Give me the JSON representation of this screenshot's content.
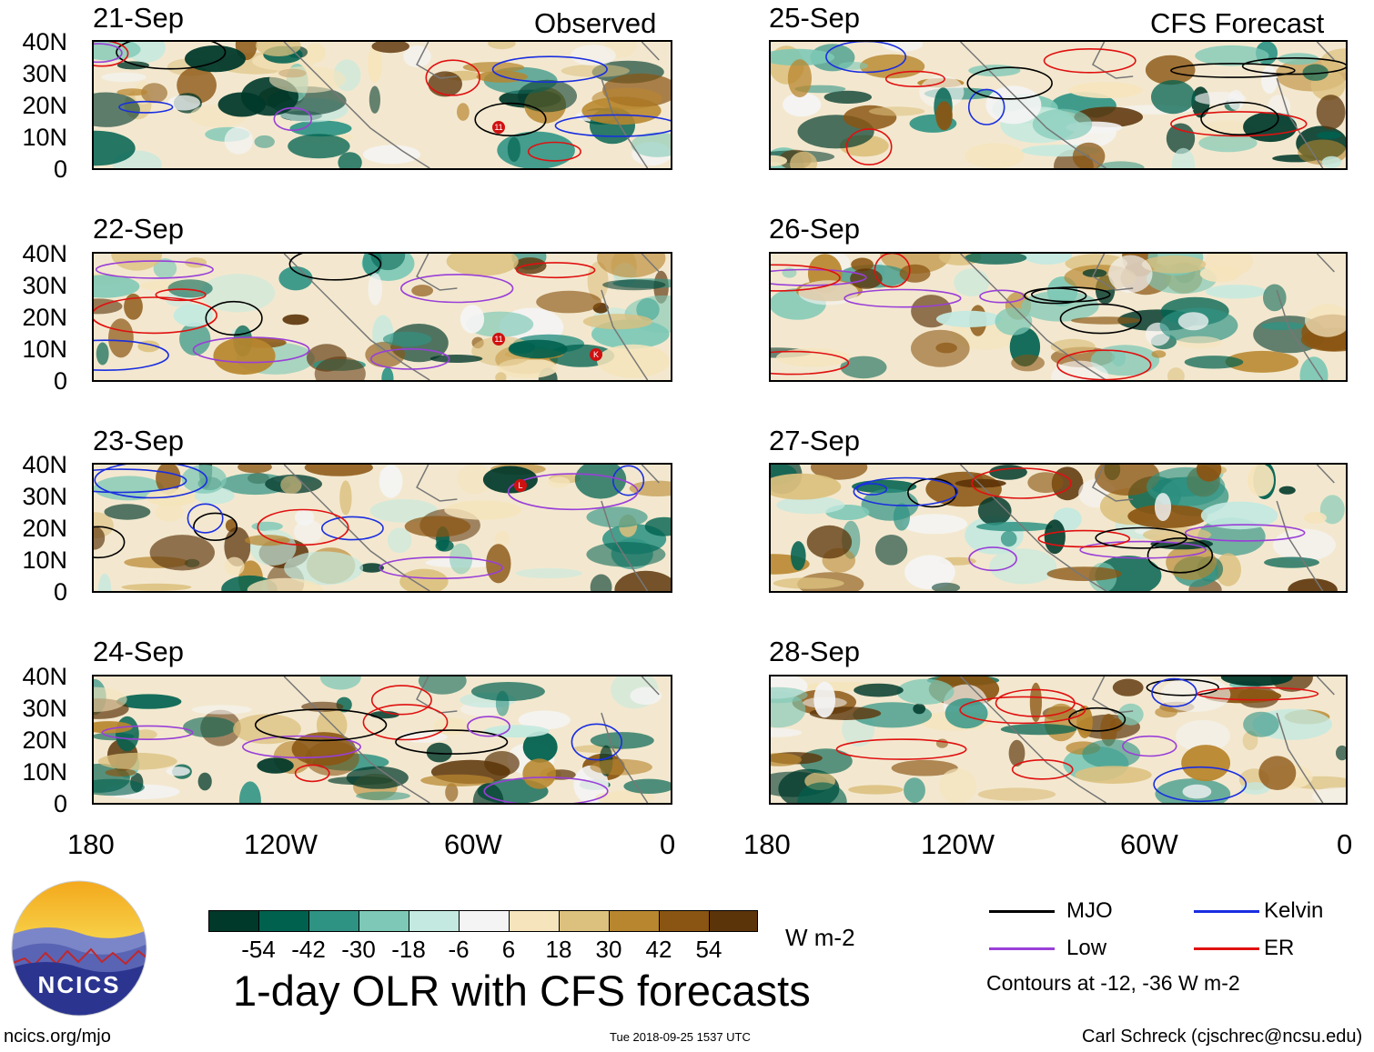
{
  "headers": {
    "left": "Observed",
    "right": "CFS Forecast"
  },
  "observed_panels": [
    "21-Sep",
    "22-Sep",
    "23-Sep",
    "24-Sep"
  ],
  "forecast_panels": [
    "25-Sep",
    "26-Sep",
    "27-Sep",
    "28-Sep"
  ],
  "lat_labels": [
    "40N",
    "30N",
    "20N",
    "10N",
    "0"
  ],
  "lon_labels": [
    "180",
    "120W",
    "60W",
    "0"
  ],
  "storm_markers": {
    "p0": [
      "11"
    ],
    "p1": [
      "11",
      "K"
    ],
    "p2": [
      "L"
    ]
  },
  "colorbar": {
    "labels": [
      "-54",
      "-42",
      "-30",
      "-18",
      "-6",
      "6",
      "18",
      "30",
      "42",
      "54"
    ],
    "colors": [
      "#00382a",
      "#00614f",
      "#2f9384",
      "#7dc8b6",
      "#c3e9e0",
      "#f4f4f4",
      "#f5e4bc",
      "#dcc07e",
      "#b8862e",
      "#8a5512",
      "#5c3409"
    ],
    "units": "W m-2"
  },
  "title": "1-day OLR with CFS forecasts",
  "legend": {
    "items": [
      {
        "label": "MJO",
        "color": "#000000"
      },
      {
        "label": "Kelvin",
        "color": "#1a2ee0"
      },
      {
        "label": "Low",
        "color": "#9a3fd8"
      },
      {
        "label": "ER",
        "color": "#e01010"
      }
    ],
    "note": "Contours at -12, -36 W m-2"
  },
  "logo": {
    "text": "NCICS"
  },
  "footer": {
    "url": "ncics.org/mjo",
    "timestamp": "Tue 2018-09-25 1537 UTC",
    "credit": "Carl Schreck (cjschrec@ncsu.edu)"
  }
}
